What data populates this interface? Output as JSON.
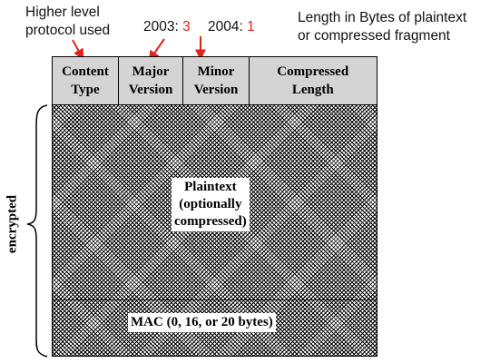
{
  "annotations": {
    "higher_level_line1": "Higher level",
    "higher_level_line2": "protocol used",
    "year_2003": "2003:",
    "major_2003": "3",
    "year_2004": "2004:",
    "minor_2004": "1",
    "length_line1": "Length in Bytes of plaintext",
    "length_line2": "or compressed fragment"
  },
  "header_fields": [
    {
      "line1": "Content",
      "line2": "Type"
    },
    {
      "line1": "Major",
      "line2": "Version"
    },
    {
      "line1": "Minor",
      "line2": "Version"
    },
    {
      "line1": "Compressed",
      "line2": "Length"
    }
  ],
  "body": {
    "plaintext_line1": "Plaintext",
    "plaintext_line2": "(optionally",
    "plaintext_line3": "compressed)",
    "mac_label": "MAC (0, 16, or 20 bytes)"
  },
  "side_label": "encrypted",
  "colors": {
    "header_fill": "#d4d4d4",
    "annotation_accent": "#e0231b"
  }
}
